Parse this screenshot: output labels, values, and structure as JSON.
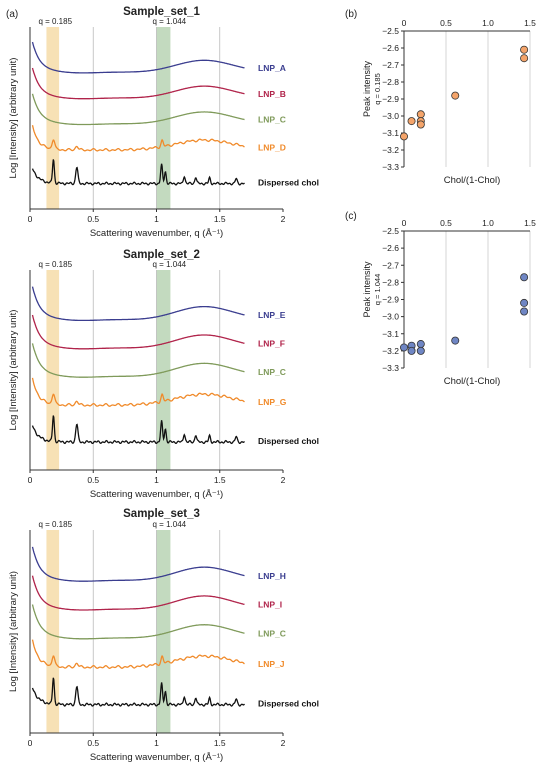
{
  "panels": {
    "a": "(a)",
    "b": "(b)",
    "c": "(c)"
  },
  "colors": {
    "LNP_A": "#3a3d8f",
    "LNP_B": "#b0234a",
    "LNP_C": "#7f9a5a",
    "LNP_D": "#f08a2a",
    "LNP_E": "#3a3d8f",
    "LNP_F": "#b0234a",
    "LNP_G": "#f08a2a",
    "LNP_H": "#3a3d8f",
    "LNP_I": "#b0234a",
    "LNP_J": "#f08a2a",
    "chol": "#111111",
    "band_q1": "#f6dca8",
    "band_q2": "#b9d3b4",
    "marker_b": "#f4a46a",
    "marker_c": "#6f86c4"
  },
  "chart_data": [
    {
      "type": "line",
      "title": "Sample_set_1",
      "xlabel": "Scattering wavenumber, q (Å⁻¹)",
      "ylabel": "Log [Intensity] (arbitrary unit)",
      "xlim": [
        0,
        2
      ],
      "xticks": [
        "0",
        "0.5",
        "1",
        "1.5",
        "2"
      ],
      "bands": [
        {
          "label": "q = 0.185",
          "from": 0.13,
          "to": 0.23
        },
        {
          "label": "q = 1.044",
          "from": 1.0,
          "to": 1.11
        }
      ],
      "series": [
        {
          "name": "LNP_A",
          "color_key": "LNP_A",
          "kind": "smooth",
          "offset": 0.0
        },
        {
          "name": "LNP_B",
          "color_key": "LNP_B",
          "kind": "smooth",
          "offset": 1.0
        },
        {
          "name": "LNP_C",
          "color_key": "LNP_C",
          "kind": "smooth",
          "offset": 2.0
        },
        {
          "name": "LNP_D",
          "color_key": "LNP_D",
          "kind": "peaky",
          "offset": 3.0
        },
        {
          "name": "Dispersed chol",
          "color_key": "chol",
          "kind": "chol",
          "offset": 4.3
        }
      ]
    },
    {
      "type": "line",
      "title": "Sample_set_2",
      "xlabel": "Scattering wavenumber, q (Å⁻¹)",
      "ylabel": "Log [Intensity] (arbitrary unit)",
      "xlim": [
        0,
        2
      ],
      "xticks": [
        "0",
        "0.5",
        "1",
        "1.5",
        "2"
      ],
      "bands": [
        {
          "label": "q = 0.185",
          "from": 0.13,
          "to": 0.23
        },
        {
          "label": "q = 1.044",
          "from": 1.0,
          "to": 1.11
        }
      ],
      "series": [
        {
          "name": "LNP_E",
          "color_key": "LNP_E",
          "kind": "smooth",
          "offset": 0.0
        },
        {
          "name": "LNP_F",
          "color_key": "LNP_F",
          "kind": "smooth",
          "offset": 1.0
        },
        {
          "name": "LNP_C",
          "color_key": "LNP_C",
          "kind": "smooth",
          "offset": 2.0
        },
        {
          "name": "LNP_G",
          "color_key": "LNP_G",
          "kind": "peaky",
          "offset": 3.0
        },
        {
          "name": "Dispersed chol",
          "color_key": "chol",
          "kind": "chol",
          "offset": 4.3
        }
      ]
    },
    {
      "type": "line",
      "title": "Sample_set_3",
      "xlabel": "Scattering wavenumber, q (Å⁻¹)",
      "ylabel": "Log [Intensity] (arbitrary unit)",
      "xlim": [
        0,
        2
      ],
      "xticks": [
        "0",
        "0.5",
        "1",
        "1.5",
        "2"
      ],
      "bands": [
        {
          "label": "q = 0.185",
          "from": 0.13,
          "to": 0.23
        },
        {
          "label": "q = 1.044",
          "from": 1.0,
          "to": 1.11
        }
      ],
      "series": [
        {
          "name": "LNP_H",
          "color_key": "LNP_H",
          "kind": "smooth",
          "offset": 0.0
        },
        {
          "name": "LNP_I",
          "color_key": "LNP_I",
          "kind": "smooth",
          "offset": 1.0
        },
        {
          "name": "LNP_C",
          "color_key": "LNP_C",
          "kind": "smooth",
          "offset": 2.0
        },
        {
          "name": "LNP_J",
          "color_key": "LNP_J",
          "kind": "peaky",
          "offset": 3.0
        },
        {
          "name": "Dispersed chol",
          "color_key": "chol",
          "kind": "chol",
          "offset": 4.3
        }
      ]
    },
    {
      "type": "scatter",
      "xlabel": "Chol/(1-Chol)",
      "ylabel": "Peak intensity",
      "ylabel_sub": "q = 0.185",
      "xlim": [
        0,
        1.5
      ],
      "ylim": [
        -3.3,
        -2.5
      ],
      "xticks": [
        0,
        0.5,
        1.0,
        1.5
      ],
      "yticks": [
        -2.5,
        -2.6,
        -2.7,
        -2.8,
        -2.9,
        -3.0,
        -3.1,
        -3.2,
        -3.3
      ],
      "points": [
        [
          0,
          -3.12
        ],
        [
          0.09,
          -3.03
        ],
        [
          0.2,
          -2.99
        ],
        [
          0.2,
          -3.03
        ],
        [
          0.2,
          -3.05
        ],
        [
          0.61,
          -2.88
        ],
        [
          1.43,
          -2.61
        ],
        [
          1.43,
          -2.66
        ]
      ]
    },
    {
      "type": "scatter",
      "xlabel": "Chol/(1-Chol)",
      "ylabel": "Peak intensity",
      "ylabel_sub": "q = 1.044",
      "xlim": [
        0,
        1.5
      ],
      "ylim": [
        -3.3,
        -2.5
      ],
      "xticks": [
        0,
        0.5,
        1.0,
        1.5
      ],
      "yticks": [
        -2.5,
        -2.6,
        -2.7,
        -2.8,
        -2.9,
        -3.0,
        -3.1,
        -3.2,
        -3.3
      ],
      "points": [
        [
          0,
          -3.18
        ],
        [
          0.09,
          -3.17
        ],
        [
          0.09,
          -3.2
        ],
        [
          0.2,
          -3.16
        ],
        [
          0.2,
          -3.2
        ],
        [
          0.61,
          -3.14
        ],
        [
          1.43,
          -2.77
        ],
        [
          1.43,
          -2.92
        ],
        [
          1.43,
          -2.97
        ]
      ]
    }
  ]
}
